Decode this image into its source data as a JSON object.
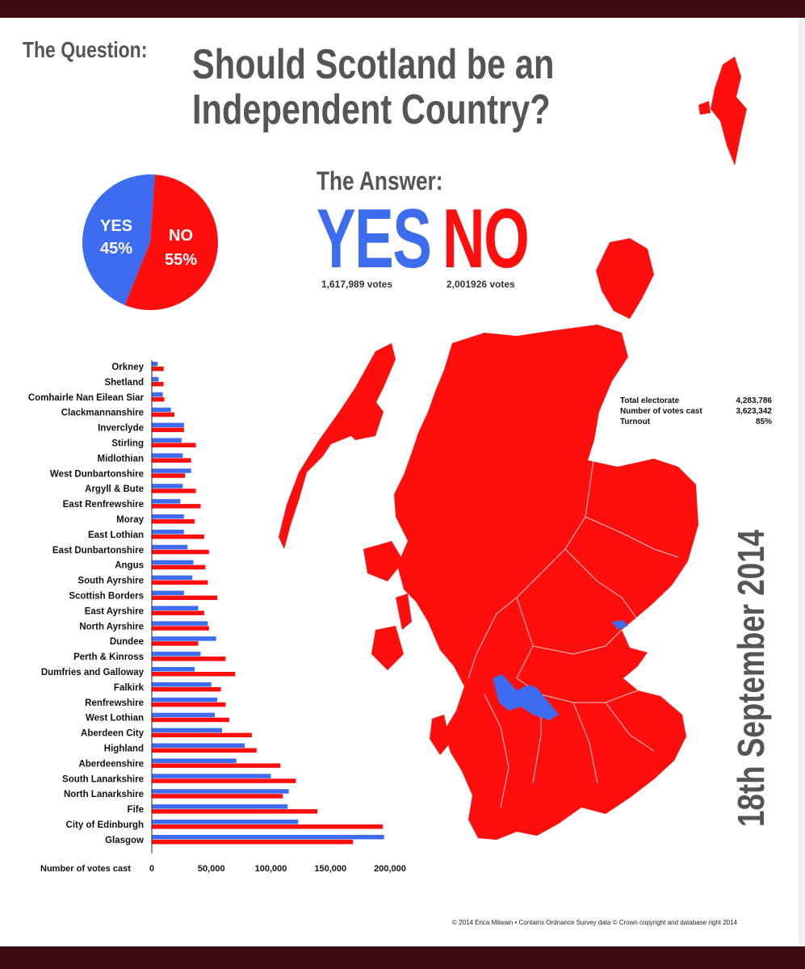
{
  "header": {
    "question_label": "The Question:",
    "question_title": "Should Scotland be an Independent Country?",
    "answer_label": "The Answer:"
  },
  "result": {
    "yes_label": "YES",
    "no_label": "NO",
    "yes_votes": "1,617,989 votes",
    "no_votes": "2,001926 votes",
    "pie_yes_label": "YES",
    "pie_yes_pct": "45%",
    "pie_no_label": "NO",
    "pie_no_pct": "55%"
  },
  "stats": [
    {
      "label": "Total electorate",
      "value": "4,283,786"
    },
    {
      "label": "Number of votes cast",
      "value": "3,623,342"
    },
    {
      "label": "Turnout",
      "value": "85%"
    }
  ],
  "date": "18th September 2014",
  "footer": "© 2014 Erica Milwain  •  Contains Ordnance Survey data © Crown copyright and database right 2014",
  "colors": {
    "yes": "#3d6cf0",
    "no": "#ff0e0e",
    "text": "#555555",
    "bar_frame": "#3a0c10"
  },
  "chart_data": [
    {
      "type": "pie",
      "categories": [
        "YES",
        "NO"
      ],
      "values": [
        45,
        55
      ]
    },
    {
      "type": "bar",
      "orientation": "horizontal",
      "xlabel": "Number of votes cast",
      "xlim": [
        0,
        200000
      ],
      "xticks": [
        "0",
        "50,000",
        "100,000",
        "150,000",
        "200,000"
      ],
      "categories": [
        "Orkney",
        "Shetland",
        "Comhairle Nan Eilean Siar",
        "Clackmannanshire",
        "Inverclyde",
        "Stirling",
        "Midlothian",
        "West Dunbartonshire",
        "Argyll & Bute",
        "East Renfrewshire",
        "Moray",
        "East Lothian",
        "East Dunbartonshire",
        "Angus",
        "South Ayrshire",
        "Scottish Borders",
        "East Ayrshire",
        "North Ayrshire",
        "Dundee",
        "Perth & Kinross",
        "Dumfries and Galloway",
        "Falkirk",
        "Renfrewshire",
        "West Lothian",
        "Aberdeen City",
        "Highland",
        "Aberdeenshire",
        "South Lanarkshire",
        "North Lanarkshire",
        "Fife",
        "City of Edinburgh",
        "Glasgow"
      ],
      "series": [
        {
          "name": "YES",
          "values": [
            4900,
            5700,
            9200,
            16000,
            27000,
            25000,
            26000,
            33000,
            26000,
            24000,
            27000,
            27000,
            30000,
            35000,
            34000,
            27000,
            39000,
            47000,
            54000,
            41000,
            36000,
            50000,
            55000,
            53000,
            59000,
            78000,
            71000,
            100000,
            115000,
            114000,
            123000,
            195000
          ]
        },
        {
          "name": "NO",
          "values": [
            10000,
            9900,
            10500,
            19000,
            27000,
            37000,
            33000,
            28000,
            37000,
            41000,
            36000,
            44000,
            48000,
            45000,
            47000,
            55000,
            44000,
            48000,
            39000,
            62000,
            70000,
            58000,
            62000,
            65000,
            84000,
            88000,
            108000,
            121000,
            110000,
            139000,
            194000,
            169000
          ]
        }
      ]
    }
  ]
}
